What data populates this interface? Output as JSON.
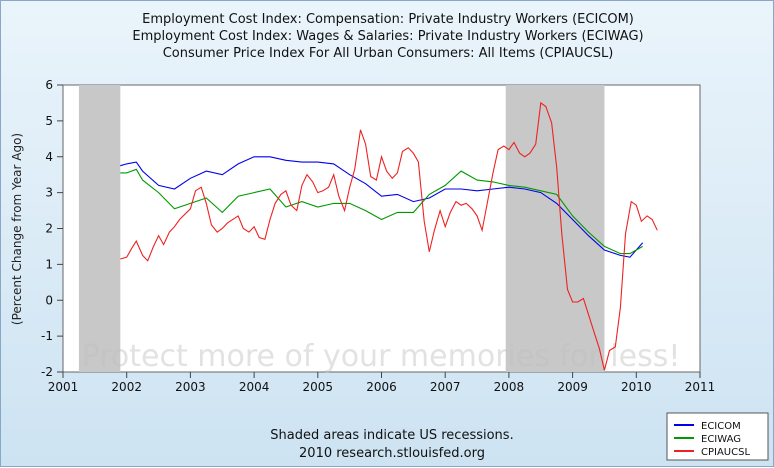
{
  "chart_data": {
    "type": "line",
    "titles": [
      "Employment Cost Index: Compensation: Private Industry Workers (ECICOM)",
      "Employment Cost Index: Wages & Salaries: Private Industry Workers (ECIWAG)",
      "Consumer Price Index For All Urban Consumers: All Items (CPIAUCSL)"
    ],
    "ylabel": "(Percent Change from Year Ago)",
    "ylim": [
      -2,
      6
    ],
    "yticks": [
      -2,
      -1,
      0,
      1,
      2,
      3,
      4,
      5,
      6
    ],
    "xlim": [
      2001.0,
      2011.0
    ],
    "xtick_years": [
      2001,
      2002,
      2003,
      2004,
      2005,
      2006,
      2007,
      2008,
      2009,
      2010,
      2011
    ],
    "xtick_labels": [
      "2001",
      "2002",
      "2003",
      "2004",
      "2005",
      "2006",
      "2007",
      "2008",
      "2009",
      "2010",
      "2011"
    ],
    "recessions": [
      [
        2001.25,
        2001.9
      ],
      [
        2007.95,
        2009.5
      ]
    ],
    "footer": [
      "Shaded areas indicate US recessions.",
      "2010 research.stlouisfed.org"
    ],
    "watermark": "Protect more of your memories for less!",
    "series": [
      {
        "name": "ECICOM",
        "color": "#0000ee",
        "points": [
          [
            2001.9,
            3.75
          ],
          [
            2002.0,
            3.8
          ],
          [
            2002.15,
            3.85
          ],
          [
            2002.25,
            3.6
          ],
          [
            2002.5,
            3.2
          ],
          [
            2002.75,
            3.1
          ],
          [
            2003.0,
            3.4
          ],
          [
            2003.25,
            3.6
          ],
          [
            2003.5,
            3.5
          ],
          [
            2003.75,
            3.8
          ],
          [
            2004.0,
            4.0
          ],
          [
            2004.25,
            4.0
          ],
          [
            2004.5,
            3.9
          ],
          [
            2004.75,
            3.85
          ],
          [
            2005.0,
            3.85
          ],
          [
            2005.25,
            3.8
          ],
          [
            2005.5,
            3.5
          ],
          [
            2005.75,
            3.25
          ],
          [
            2006.0,
            2.9
          ],
          [
            2006.25,
            2.95
          ],
          [
            2006.5,
            2.75
          ],
          [
            2006.75,
            2.85
          ],
          [
            2007.0,
            3.1
          ],
          [
            2007.25,
            3.1
          ],
          [
            2007.5,
            3.05
          ],
          [
            2007.75,
            3.1
          ],
          [
            2008.0,
            3.15
          ],
          [
            2008.25,
            3.1
          ],
          [
            2008.5,
            3.0
          ],
          [
            2008.75,
            2.7
          ],
          [
            2009.0,
            2.25
          ],
          [
            2009.25,
            1.8
          ],
          [
            2009.5,
            1.4
          ],
          [
            2009.75,
            1.25
          ],
          [
            2009.9,
            1.2
          ],
          [
            2010.0,
            1.4
          ],
          [
            2010.1,
            1.6
          ]
        ]
      },
      {
        "name": "ECIWAG",
        "color": "#009900",
        "points": [
          [
            2001.9,
            3.55
          ],
          [
            2002.0,
            3.55
          ],
          [
            2002.15,
            3.65
          ],
          [
            2002.25,
            3.35
          ],
          [
            2002.5,
            3.0
          ],
          [
            2002.75,
            2.55
          ],
          [
            2003.0,
            2.7
          ],
          [
            2003.25,
            2.85
          ],
          [
            2003.5,
            2.45
          ],
          [
            2003.75,
            2.9
          ],
          [
            2004.0,
            3.0
          ],
          [
            2004.25,
            3.1
          ],
          [
            2004.5,
            2.6
          ],
          [
            2004.75,
            2.75
          ],
          [
            2005.0,
            2.6
          ],
          [
            2005.25,
            2.7
          ],
          [
            2005.5,
            2.7
          ],
          [
            2005.75,
            2.5
          ],
          [
            2006.0,
            2.25
          ],
          [
            2006.25,
            2.45
          ],
          [
            2006.5,
            2.45
          ],
          [
            2006.75,
            2.95
          ],
          [
            2007.0,
            3.2
          ],
          [
            2007.25,
            3.6
          ],
          [
            2007.5,
            3.35
          ],
          [
            2007.75,
            3.3
          ],
          [
            2008.0,
            3.2
          ],
          [
            2008.25,
            3.15
          ],
          [
            2008.5,
            3.05
          ],
          [
            2008.75,
            2.95
          ],
          [
            2009.0,
            2.35
          ],
          [
            2009.25,
            1.9
          ],
          [
            2009.5,
            1.5
          ],
          [
            2009.75,
            1.3
          ],
          [
            2009.9,
            1.3
          ],
          [
            2010.0,
            1.4
          ],
          [
            2010.1,
            1.5
          ]
        ]
      },
      {
        "name": "CPIAUCSL",
        "color": "#ee2222",
        "points": [
          [
            2001.9,
            1.15
          ],
          [
            2002.0,
            1.2
          ],
          [
            2002.08,
            1.45
          ],
          [
            2002.15,
            1.65
          ],
          [
            2002.25,
            1.25
          ],
          [
            2002.33,
            1.1
          ],
          [
            2002.42,
            1.5
          ],
          [
            2002.5,
            1.8
          ],
          [
            2002.58,
            1.55
          ],
          [
            2002.67,
            1.9
          ],
          [
            2002.75,
            2.05
          ],
          [
            2002.83,
            2.25
          ],
          [
            2003.0,
            2.55
          ],
          [
            2003.08,
            3.05
          ],
          [
            2003.17,
            3.15
          ],
          [
            2003.25,
            2.7
          ],
          [
            2003.33,
            2.1
          ],
          [
            2003.42,
            1.9
          ],
          [
            2003.5,
            2.0
          ],
          [
            2003.58,
            2.15
          ],
          [
            2003.75,
            2.35
          ],
          [
            2003.83,
            2.0
          ],
          [
            2003.92,
            1.9
          ],
          [
            2004.0,
            2.05
          ],
          [
            2004.08,
            1.75
          ],
          [
            2004.17,
            1.7
          ],
          [
            2004.25,
            2.25
          ],
          [
            2004.33,
            2.7
          ],
          [
            2004.42,
            2.95
          ],
          [
            2004.5,
            3.05
          ],
          [
            2004.58,
            2.65
          ],
          [
            2004.67,
            2.5
          ],
          [
            2004.75,
            3.2
          ],
          [
            2004.83,
            3.5
          ],
          [
            2004.92,
            3.3
          ],
          [
            2005.0,
            3.0
          ],
          [
            2005.08,
            3.05
          ],
          [
            2005.17,
            3.15
          ],
          [
            2005.25,
            3.5
          ],
          [
            2005.33,
            2.9
          ],
          [
            2005.42,
            2.5
          ],
          [
            2005.5,
            3.15
          ],
          [
            2005.58,
            3.65
          ],
          [
            2005.67,
            4.75
          ],
          [
            2005.75,
            4.35
          ],
          [
            2005.83,
            3.45
          ],
          [
            2005.92,
            3.35
          ],
          [
            2006.0,
            4.0
          ],
          [
            2006.08,
            3.6
          ],
          [
            2006.17,
            3.4
          ],
          [
            2006.25,
            3.55
          ],
          [
            2006.33,
            4.15
          ],
          [
            2006.42,
            4.25
          ],
          [
            2006.5,
            4.1
          ],
          [
            2006.58,
            3.85
          ],
          [
            2006.67,
            2.2
          ],
          [
            2006.75,
            1.35
          ],
          [
            2006.83,
            1.95
          ],
          [
            2006.92,
            2.5
          ],
          [
            2007.0,
            2.05
          ],
          [
            2007.08,
            2.45
          ],
          [
            2007.17,
            2.75
          ],
          [
            2007.25,
            2.65
          ],
          [
            2007.33,
            2.7
          ],
          [
            2007.42,
            2.55
          ],
          [
            2007.5,
            2.35
          ],
          [
            2007.58,
            1.95
          ],
          [
            2007.67,
            2.8
          ],
          [
            2007.75,
            3.55
          ],
          [
            2007.83,
            4.2
          ],
          [
            2007.92,
            4.3
          ],
          [
            2008.0,
            4.2
          ],
          [
            2008.08,
            4.4
          ],
          [
            2008.17,
            4.1
          ],
          [
            2008.25,
            4.0
          ],
          [
            2008.33,
            4.1
          ],
          [
            2008.42,
            4.35
          ],
          [
            2008.5,
            5.5
          ],
          [
            2008.58,
            5.4
          ],
          [
            2008.67,
            4.95
          ],
          [
            2008.75,
            3.7
          ],
          [
            2008.83,
            1.85
          ],
          [
            2008.92,
            0.3
          ],
          [
            2009.0,
            -0.05
          ],
          [
            2009.08,
            -0.05
          ],
          [
            2009.17,
            0.05
          ],
          [
            2009.25,
            -0.4
          ],
          [
            2009.33,
            -0.85
          ],
          [
            2009.42,
            -1.35
          ],
          [
            2009.5,
            -1.95
          ],
          [
            2009.58,
            -1.4
          ],
          [
            2009.67,
            -1.3
          ],
          [
            2009.75,
            -0.2
          ],
          [
            2009.83,
            1.85
          ],
          [
            2009.92,
            2.75
          ],
          [
            2010.0,
            2.65
          ],
          [
            2010.08,
            2.2
          ],
          [
            2010.17,
            2.35
          ],
          [
            2010.25,
            2.25
          ],
          [
            2010.33,
            1.95
          ]
        ]
      }
    ]
  }
}
